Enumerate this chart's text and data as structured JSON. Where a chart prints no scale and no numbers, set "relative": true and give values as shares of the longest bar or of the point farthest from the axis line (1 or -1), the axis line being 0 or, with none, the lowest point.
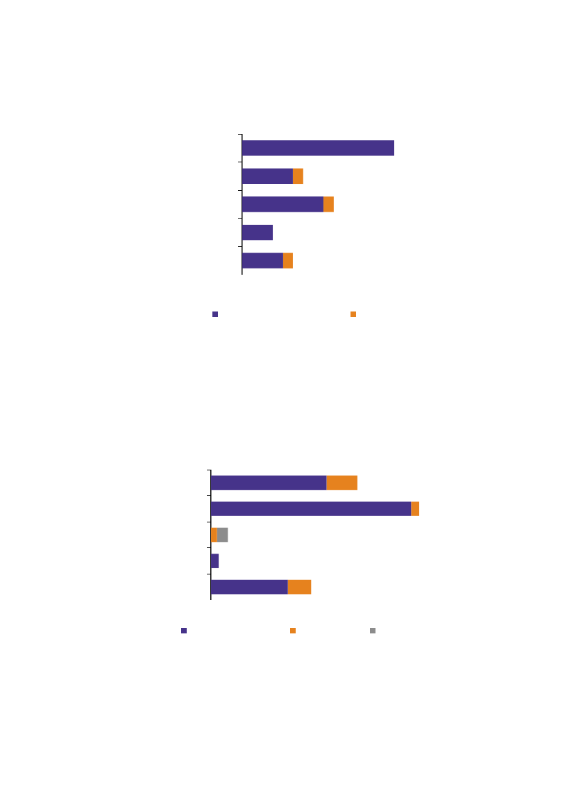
{
  "chart_data": [
    {
      "type": "bar",
      "orientation": "horizontal",
      "stacked": true,
      "relative": true,
      "categories": [
        null,
        null,
        null,
        null,
        null
      ],
      "series": [
        {
          "color": "#46338a",
          "values": [
            1,
            0.333,
            0.534,
            0.201,
            0.269
          ]
        },
        {
          "color": "#e6821e",
          "values": [
            null,
            0.068,
            0.068,
            null,
            0.064
          ]
        }
      ]
    },
    {
      "type": "bar",
      "orientation": "horizontal",
      "stacked": true,
      "relative": true,
      "categories": [
        null,
        null,
        null,
        null,
        null
      ],
      "series": [
        {
          "color": "#46338a",
          "values": [
            0.555,
            0.961,
            null,
            0.037,
            0.369
          ]
        },
        {
          "color": "#e6821e",
          "values": [
            0.148,
            0.039,
            0.029,
            null,
            0.112
          ]
        },
        {
          "color": "#8c8c8c",
          "values": [
            null,
            null,
            0.052,
            null,
            null
          ]
        }
      ]
    }
  ]
}
